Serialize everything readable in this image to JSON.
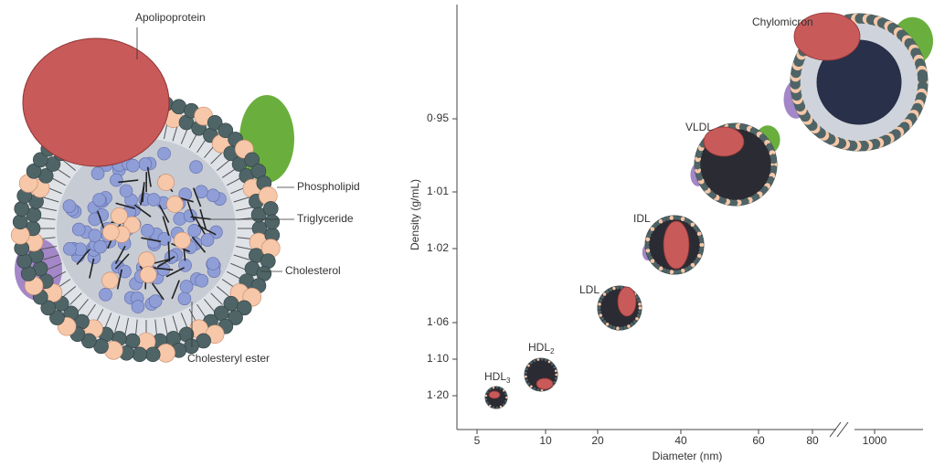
{
  "structure": {
    "labels": {
      "apolipoprotein": "Apolipoprotein",
      "phospholipid": "Phospholipid",
      "triglyceride": "Triglyceride",
      "cholesterol": "Cholesterol",
      "cholesteryl_ester": "Cholesteryl ester"
    }
  },
  "classification": {
    "x_axis_label": "Diameter (nm)",
    "y_axis_label": "Density (g/mL)",
    "x_ticks": [
      "5",
      "10",
      "20",
      "40",
      "60",
      "80",
      "1000"
    ],
    "y_ticks": [
      "0·95",
      "1·01",
      "1·02",
      "1·06",
      "1·10",
      "1·20"
    ],
    "particles": [
      {
        "label": "Chylomicron"
      },
      {
        "label": "VLDL"
      },
      {
        "label": "IDL"
      },
      {
        "label": "LDL"
      },
      {
        "label": "HDL",
        "subscript": "2"
      },
      {
        "label": "HDL",
        "subscript": "3"
      }
    ]
  }
}
